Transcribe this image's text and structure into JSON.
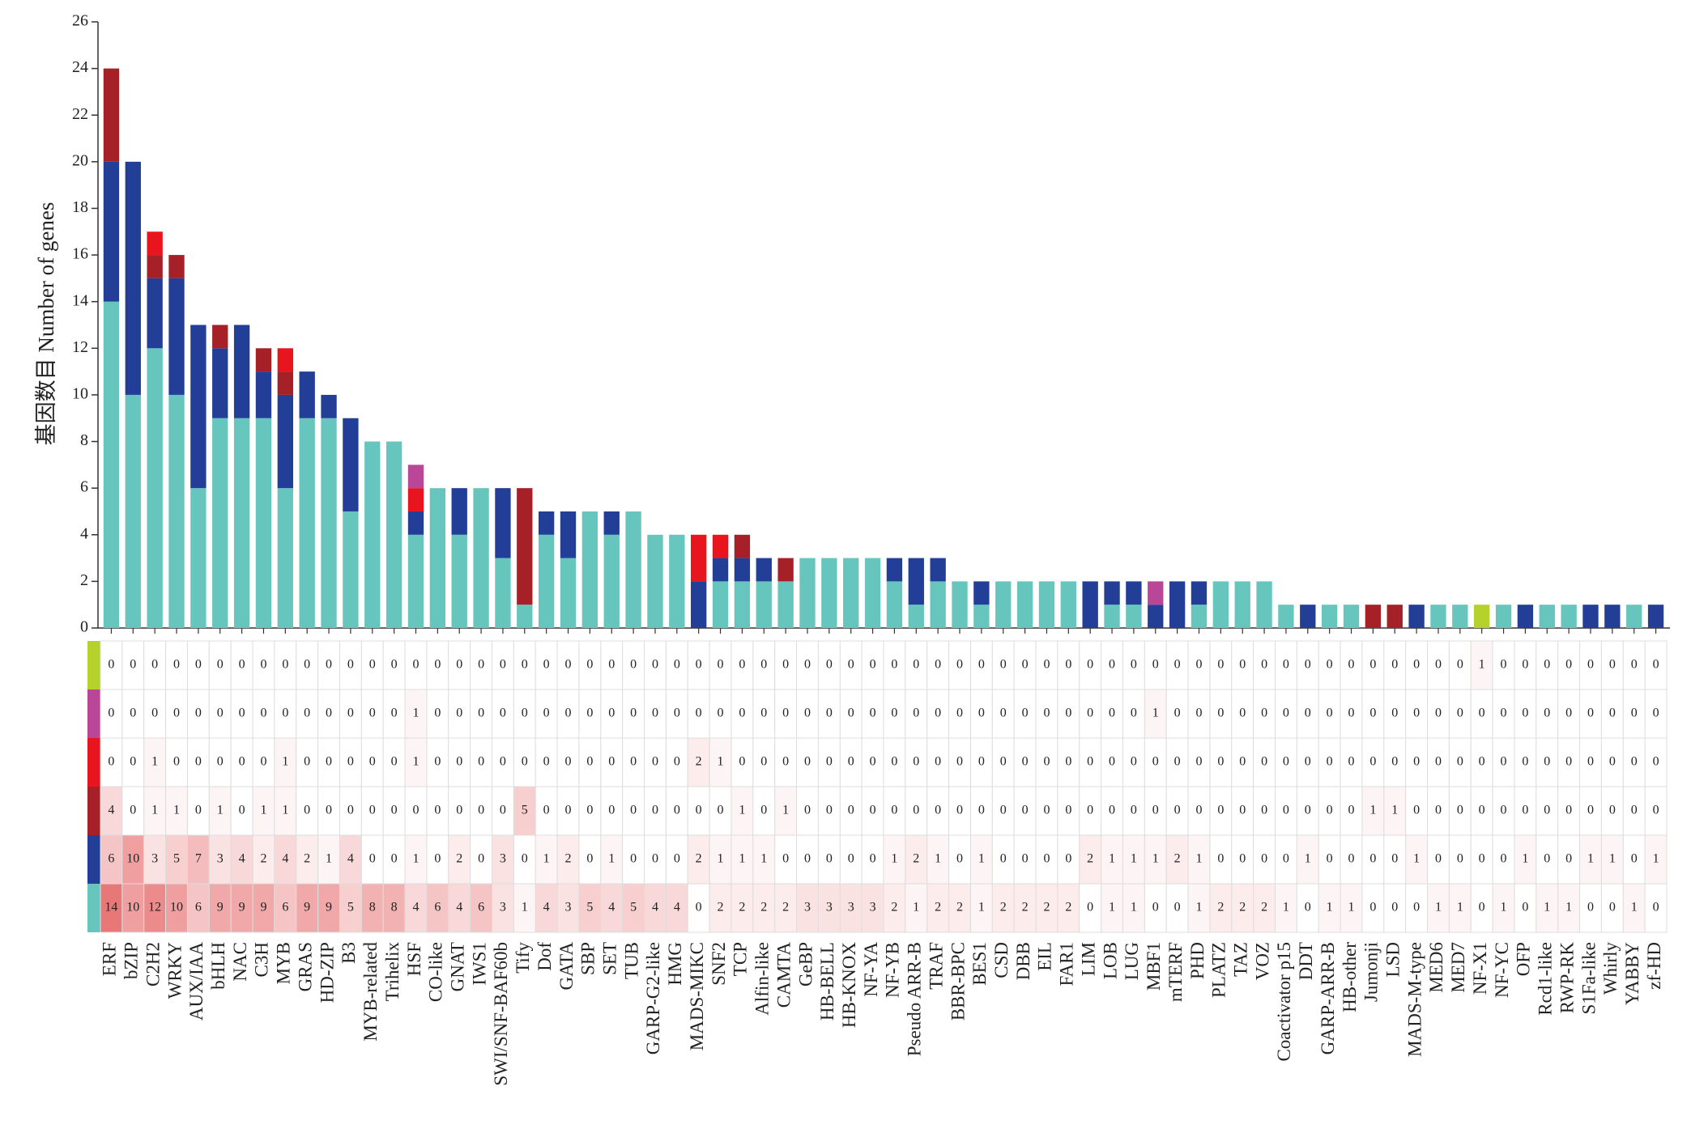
{
  "chart_data": {
    "type": "bar",
    "stacked": true,
    "y_label": "基因数目 Number of genes",
    "ylim": [
      0,
      26
    ],
    "yticks": [
      0,
      2,
      4,
      6,
      8,
      10,
      12,
      14,
      16,
      18,
      20,
      22,
      24,
      26
    ],
    "categories": [
      "ERF",
      "bZIP",
      "C2H2",
      "WRKY",
      "AUX/IAA",
      "bHLH",
      "NAC",
      "C3H",
      "MYB",
      "GRAS",
      "HD-ZIP",
      "B3",
      "MYB-related",
      "Trihelix",
      "HSF",
      "CO-like",
      "GNAT",
      "IWS1",
      "SWI/SNF-BAF60b",
      "Tify",
      "Dof",
      "GATA",
      "SBP",
      "SET",
      "TUB",
      "GARP-G2-like",
      "HMG",
      "MADS-MIKC",
      "SNF2",
      "TCP",
      "Alfin-like",
      "CAMTA",
      "GeBP",
      "HB-BELL",
      "HB-KNOX",
      "NF-YA",
      "NF-YB",
      "Pseudo ARR-B",
      "TRAF",
      "BBR-BPC",
      "BES1",
      "CSD",
      "DBB",
      "EIL",
      "FAR1",
      "LIM",
      "LOB",
      "LUG",
      "MBF1",
      "mTERF",
      "PHD",
      "PLATZ",
      "TAZ",
      "VOZ",
      "Coactivator p15",
      "DDT",
      "GARP-ARR-B",
      "HB-other",
      "Jumonji",
      "LSD",
      "MADS-M-type",
      "MED6",
      "MED7",
      "NF-X1",
      "NF-YC",
      "OFP",
      "Rcd1-like",
      "RWP-RK",
      "S1Fa-like",
      "Whirly",
      "YABBY",
      "zf-HD"
    ],
    "series": [
      {
        "color": "#66c6bd",
        "values": [
          14,
          10,
          12,
          10,
          6,
          9,
          9,
          9,
          6,
          9,
          9,
          5,
          8,
          8,
          4,
          6,
          4,
          6,
          3,
          1,
          4,
          3,
          5,
          4,
          5,
          4,
          4,
          0,
          2,
          2,
          2,
          2,
          3,
          3,
          3,
          3,
          2,
          1,
          2,
          2,
          1,
          2,
          2,
          2,
          2,
          0,
          1,
          1,
          0,
          0,
          1,
          2,
          2,
          2,
          1,
          0,
          1,
          1,
          0,
          0,
          0,
          1,
          1,
          0,
          1,
          0,
          1,
          1,
          0,
          0,
          1,
          0
        ]
      },
      {
        "color": "#233e96",
        "values": [
          6,
          10,
          3,
          5,
          7,
          3,
          4,
          2,
          4,
          2,
          1,
          4,
          0,
          0,
          1,
          0,
          2,
          0,
          3,
          0,
          1,
          2,
          0,
          1,
          0,
          0,
          0,
          2,
          1,
          1,
          1,
          0,
          0,
          0,
          0,
          0,
          1,
          2,
          1,
          0,
          1,
          0,
          0,
          0,
          0,
          2,
          1,
          1,
          1,
          2,
          1,
          0,
          0,
          0,
          0,
          1,
          0,
          0,
          0,
          0,
          1,
          0,
          0,
          0,
          0,
          1,
          0,
          0,
          1,
          1,
          0,
          1
        ]
      },
      {
        "color": "#a52127",
        "values": [
          4,
          0,
          1,
          1,
          0,
          1,
          0,
          1,
          1,
          0,
          0,
          0,
          0,
          0,
          0,
          0,
          0,
          0,
          0,
          5,
          0,
          0,
          0,
          0,
          0,
          0,
          0,
          0,
          0,
          1,
          0,
          1,
          0,
          0,
          0,
          0,
          0,
          0,
          0,
          0,
          0,
          0,
          0,
          0,
          0,
          0,
          0,
          0,
          0,
          0,
          0,
          0,
          0,
          0,
          0,
          0,
          0,
          0,
          1,
          1,
          0,
          0,
          0,
          0,
          0,
          0,
          0,
          0,
          0,
          0,
          0,
          0
        ]
      },
      {
        "color": "#e8141e",
        "values": [
          0,
          0,
          1,
          0,
          0,
          0,
          0,
          0,
          1,
          0,
          0,
          0,
          0,
          0,
          1,
          0,
          0,
          0,
          0,
          0,
          0,
          0,
          0,
          0,
          0,
          0,
          0,
          2,
          1,
          0,
          0,
          0,
          0,
          0,
          0,
          0,
          0,
          0,
          0,
          0,
          0,
          0,
          0,
          0,
          0,
          0,
          0,
          0,
          0,
          0,
          0,
          0,
          0,
          0,
          0,
          0,
          0,
          0,
          0,
          0,
          0,
          0,
          0,
          0,
          0,
          0,
          0,
          0,
          0,
          0,
          0,
          0
        ]
      },
      {
        "color": "#b94696",
        "values": [
          0,
          0,
          0,
          0,
          0,
          0,
          0,
          0,
          0,
          0,
          0,
          0,
          0,
          0,
          1,
          0,
          0,
          0,
          0,
          0,
          0,
          0,
          0,
          0,
          0,
          0,
          0,
          0,
          0,
          0,
          0,
          0,
          0,
          0,
          0,
          0,
          0,
          0,
          0,
          0,
          0,
          0,
          0,
          0,
          0,
          0,
          0,
          0,
          1,
          0,
          0,
          0,
          0,
          0,
          0,
          0,
          0,
          0,
          0,
          0,
          0,
          0,
          0,
          0,
          0,
          0,
          0,
          0,
          0,
          0,
          0,
          0
        ]
      },
      {
        "color": "#b5d22c",
        "values": [
          0,
          0,
          0,
          0,
          0,
          0,
          0,
          0,
          0,
          0,
          0,
          0,
          0,
          0,
          0,
          0,
          0,
          0,
          0,
          0,
          0,
          0,
          0,
          0,
          0,
          0,
          0,
          0,
          0,
          0,
          0,
          0,
          0,
          0,
          0,
          0,
          0,
          0,
          0,
          0,
          0,
          0,
          0,
          0,
          0,
          0,
          0,
          0,
          0,
          0,
          0,
          0,
          0,
          0,
          0,
          0,
          0,
          0,
          0,
          0,
          0,
          0,
          0,
          1,
          0,
          0,
          0,
          0,
          0,
          0,
          0,
          0
        ]
      }
    ]
  }
}
